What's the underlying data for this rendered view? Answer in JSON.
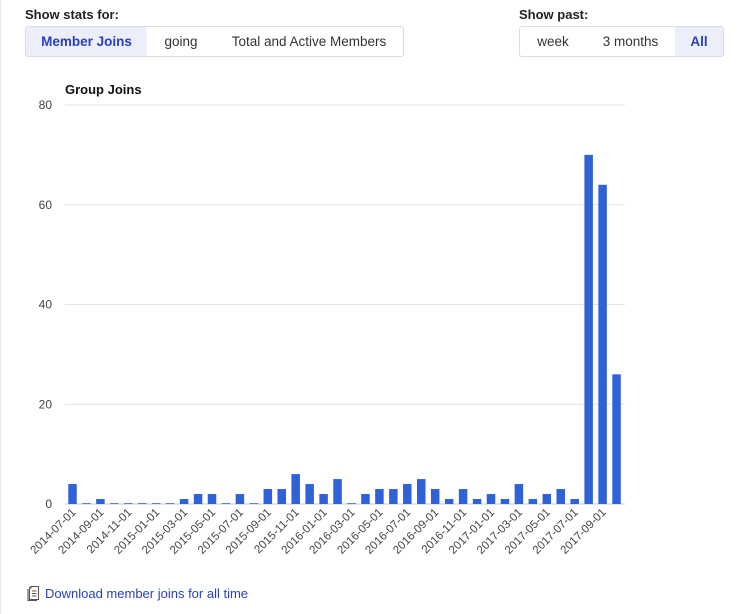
{
  "controls": {
    "stats_label": "Show stats for:",
    "stats_options": [
      "Member Joins",
      "going",
      "Total and Active Members"
    ],
    "stats_selected": "Member Joins",
    "past_label": "Show past:",
    "past_options": [
      "week",
      "3 months",
      "All"
    ],
    "past_selected": "All"
  },
  "chart_data": {
    "type": "bar",
    "title": "Group Joins",
    "xlabel": "",
    "ylabel": "",
    "ylim": [
      0,
      80
    ],
    "yticks": [
      0,
      20,
      40,
      60,
      80
    ],
    "grid": true,
    "bar_color": "#2f62d6",
    "categories": [
      "2014-07-01",
      "2014-08-01",
      "2014-09-01",
      "2014-10-01",
      "2014-11-01",
      "2014-12-01",
      "2015-01-01",
      "2015-02-01",
      "2015-03-01",
      "2015-04-01",
      "2015-05-01",
      "2015-06-01",
      "2015-07-01",
      "2015-08-01",
      "2015-09-01",
      "2015-10-01",
      "2015-11-01",
      "2015-12-01",
      "2016-01-01",
      "2016-02-01",
      "2016-03-01",
      "2016-04-01",
      "2016-05-01",
      "2016-06-01",
      "2016-07-01",
      "2016-08-01",
      "2016-09-01",
      "2016-10-01",
      "2016-11-01",
      "2016-12-01",
      "2017-01-01",
      "2017-02-01",
      "2017-03-01",
      "2017-04-01",
      "2017-05-01",
      "2017-06-01",
      "2017-07-01",
      "2017-08-01",
      "2017-09-01",
      "2017-10-01"
    ],
    "tick_labels": [
      "2014-07-01",
      "2014-09-01",
      "2014-11-01",
      "2015-01-01",
      "2015-03-01",
      "2015-05-01",
      "2015-07-01",
      "2015-09-01",
      "2015-11-01",
      "2016-01-01",
      "2016-03-01",
      "2016-05-01",
      "2016-07-01",
      "2016-09-01",
      "2016-11-01",
      "2017-01-01",
      "2017-03-01",
      "2017-05-01",
      "2017-07-01",
      "2017-09-01"
    ],
    "values": [
      4,
      0,
      1,
      0,
      0,
      0,
      0,
      0,
      1,
      2,
      2,
      0,
      2,
      0,
      3,
      3,
      6,
      4,
      2,
      5,
      0,
      2,
      3,
      3,
      4,
      5,
      3,
      1,
      3,
      1,
      2,
      1,
      4,
      1,
      2,
      3,
      1,
      70,
      64,
      26
    ]
  },
  "download": {
    "label": "Download member joins for all time",
    "icon": "document-icon"
  }
}
